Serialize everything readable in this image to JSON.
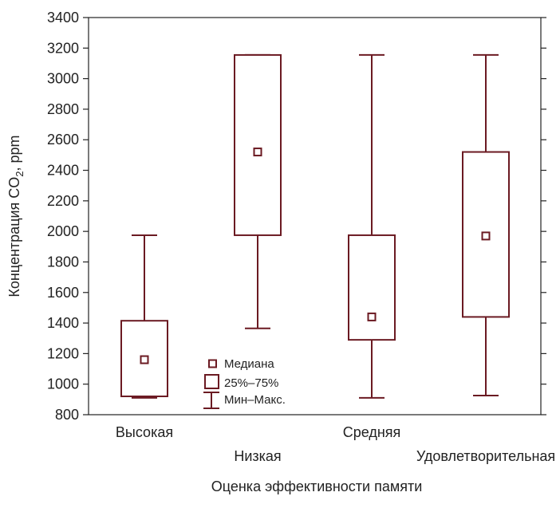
{
  "chart_data": {
    "type": "box",
    "xlabel": "Оценка эффективности памяти",
    "ylabel": "Концентрация CO₂, ppm",
    "ylabel_parts": {
      "prefix": "Концентрация CO",
      "subscript": "2",
      "suffix": ", ppm"
    },
    "ylim": [
      800,
      3400
    ],
    "yticks": [
      800,
      1000,
      1200,
      1400,
      1600,
      1800,
      2000,
      2200,
      2400,
      2600,
      2800,
      3000,
      3200,
      3400
    ],
    "grid": false,
    "categories": [
      "Высокая",
      "Низкая",
      "Средняя",
      "Удовлетворительная"
    ],
    "boxes": [
      {
        "category": "Высокая",
        "median": 1160,
        "q1": 920,
        "q3": 1415,
        "min": 910,
        "max": 1975
      },
      {
        "category": "Низкая",
        "median": 2520,
        "q1": 1975,
        "q3": 3155,
        "min": 1365,
        "max": 3155
      },
      {
        "category": "Средняя",
        "median": 1440,
        "q1": 1290,
        "q3": 1975,
        "min": 910,
        "max": 3155
      },
      {
        "category": "Удовлетворительная",
        "median": 1970,
        "q1": 1440,
        "q3": 2520,
        "min": 925,
        "max": 3155
      }
    ],
    "legend": {
      "position": "inside-bottom-left",
      "entries": [
        {
          "symbol": "median-marker",
          "label": "Медиана"
        },
        {
          "symbol": "box",
          "label": "25%–75%"
        },
        {
          "symbol": "whisker",
          "label": "Мин–Макс."
        }
      ]
    },
    "colors": {
      "box": "#6b1a22",
      "axis": "#222222",
      "text": "#222222",
      "background": "#ffffff"
    }
  }
}
